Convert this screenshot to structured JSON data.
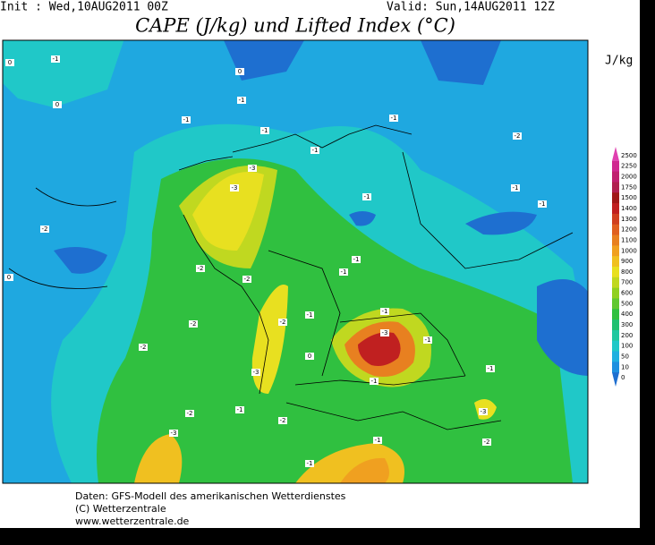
{
  "header": {
    "init": "Init : Wed,10AUG2011 00Z",
    "valid": "Valid: Sun,14AUG2011 12Z",
    "title": "CAPE (J/kg) und Lifted Index (°C)"
  },
  "colorbar": {
    "unit": "J/kg",
    "levels": [
      2500,
      2250,
      2000,
      1750,
      1500,
      1400,
      1300,
      1200,
      1100,
      1000,
      900,
      800,
      700,
      600,
      500,
      400,
      300,
      200,
      100,
      50,
      10,
      0
    ],
    "colors": [
      "#e040b0",
      "#d02890",
      "#c02070",
      "#b02050",
      "#a01818",
      "#c02020",
      "#d04020",
      "#e06020",
      "#e88020",
      "#f0a020",
      "#f0c020",
      "#e8e020",
      "#c0d820",
      "#90d020",
      "#60c830",
      "#30c040",
      "#20c070",
      "#20c8a0",
      "#20c8c8",
      "#20b0e0",
      "#1e90e0",
      "#1e6fd0"
    ]
  },
  "contour_labels": [
    "0",
    "-1",
    "0",
    "0",
    "-1",
    "-1",
    "-1",
    "-2",
    "-1",
    "-3",
    "-1",
    "-3",
    "-2",
    "-1",
    "-2",
    "-1",
    "-2",
    "-1",
    "-1",
    "-1",
    "-2",
    "-2",
    "0",
    "-1",
    "-3",
    "-1",
    "-1",
    "-2",
    "-3",
    "-1",
    "0",
    "-1",
    "-2",
    "-3",
    "-2",
    "-1",
    "-2",
    "-3",
    "-1",
    "-1"
  ],
  "footer": [
    "Daten: GFS-Modell des amerikanischen Wetterdienstes",
    "(C) Wetterzentrale",
    "www.wetterzentrale.de"
  ]
}
